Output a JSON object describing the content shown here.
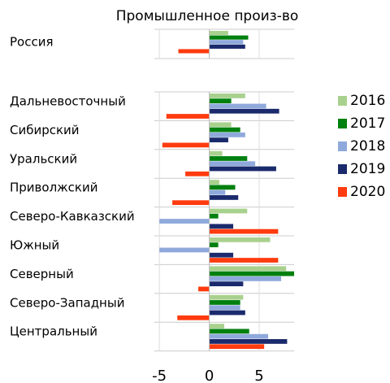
{
  "chart_data": {
    "type": "bar",
    "orientation": "horizontal",
    "title": "Промышленное произ-во",
    "categories": [
      "Россия",
      "Дальневосточный",
      "Сибирский",
      "Уральский",
      "Приволжский",
      "Северо-Кавказский",
      "Южный",
      "Северный",
      "Северо-Западный",
      "Центральный"
    ],
    "series": [
      {
        "name": "2016",
        "color": "#a9d18e",
        "values": [
          1.9,
          3.6,
          2.2,
          1.3,
          1.0,
          3.8,
          6.1,
          7.7,
          3.4,
          1.5
        ]
      },
      {
        "name": "2017",
        "color": "#00800f",
        "values": [
          3.9,
          2.2,
          3.1,
          3.8,
          2.6,
          0.9,
          0.9,
          8.5,
          3.1,
          4.0
        ]
      },
      {
        "name": "2018",
        "color": "#8fa9dc",
        "values": [
          3.4,
          5.7,
          3.6,
          4.6,
          1.6,
          -5.0,
          -5.0,
          7.2,
          3.1,
          5.9
        ]
      },
      {
        "name": "2019",
        "color": "#1a2a6c",
        "values": [
          3.6,
          7.0,
          1.9,
          6.7,
          2.9,
          2.4,
          2.4,
          3.4,
          3.6,
          7.8
        ]
      },
      {
        "name": "2020",
        "color": "#ff3b0f",
        "values": [
          -3.1,
          -4.3,
          -4.7,
          -2.4,
          -3.7,
          6.9,
          6.9,
          -1.1,
          -3.2,
          5.5
        ]
      }
    ],
    "xlim": [
      -5.5,
      8.5
    ],
    "xticks": [
      -5,
      0,
      5
    ],
    "grid": true,
    "legend": "right"
  }
}
